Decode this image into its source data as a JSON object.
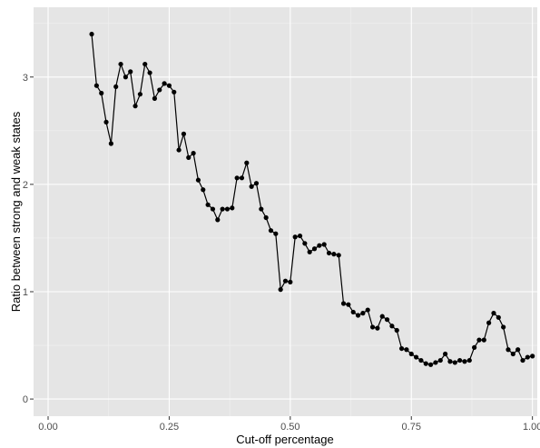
{
  "chart_data": {
    "type": "line",
    "xlabel": "Cut-off percentage",
    "ylabel": "Ratio between strong and weak states",
    "xlim": [
      -0.03,
      1.01
    ],
    "ylim": [
      -0.16,
      3.65
    ],
    "x_ticks": [
      0.0,
      0.25,
      0.5,
      0.75,
      1.0
    ],
    "x_tick_labels": [
      "0.00",
      "0.25",
      "0.50",
      "0.75",
      "1.00"
    ],
    "y_ticks": [
      0,
      1,
      2,
      3
    ],
    "y_tick_labels": [
      "0",
      "1",
      "2",
      "3"
    ],
    "grid": true,
    "markers": "points",
    "colors": {
      "panel": "#e5e5e5",
      "grid_major": "#ffffff",
      "grid_minor": "#f0f0f0",
      "line": "#000000"
    },
    "series": [
      {
        "x": [
          0.09,
          0.1,
          0.11,
          0.12,
          0.13,
          0.14,
          0.15,
          0.16,
          0.17,
          0.18,
          0.19,
          0.2,
          0.21,
          0.22,
          0.23,
          0.24,
          0.25,
          0.26,
          0.27,
          0.28,
          0.29,
          0.3,
          0.31,
          0.32,
          0.33,
          0.34,
          0.35,
          0.36,
          0.37,
          0.38,
          0.39,
          0.4,
          0.41,
          0.42,
          0.43,
          0.44,
          0.45,
          0.46,
          0.47,
          0.48,
          0.49,
          0.5,
          0.51,
          0.52,
          0.53,
          0.54,
          0.55,
          0.56,
          0.57,
          0.58,
          0.59,
          0.6,
          0.61,
          0.62,
          0.63,
          0.64,
          0.65,
          0.66,
          0.67,
          0.68,
          0.69,
          0.7,
          0.71,
          0.72,
          0.73,
          0.74,
          0.75,
          0.76,
          0.77,
          0.78,
          0.79,
          0.8,
          0.81,
          0.82,
          0.83,
          0.84,
          0.85,
          0.86,
          0.87,
          0.88,
          0.89,
          0.9,
          0.91,
          0.92,
          0.93,
          0.94,
          0.95,
          0.96,
          0.97,
          0.98,
          0.99,
          1.0
        ],
        "y": [
          3.4,
          2.92,
          2.85,
          2.58,
          2.38,
          2.91,
          3.12,
          3.0,
          3.05,
          2.73,
          2.84,
          3.12,
          3.04,
          2.8,
          2.88,
          2.94,
          2.92,
          2.86,
          2.32,
          2.47,
          2.25,
          2.29,
          2.04,
          1.95,
          1.81,
          1.77,
          1.67,
          1.77,
          1.77,
          1.78,
          2.06,
          2.06,
          2.2,
          1.98,
          2.01,
          1.77,
          1.69,
          1.57,
          1.54,
          1.02,
          1.1,
          1.09,
          1.51,
          1.52,
          1.45,
          1.37,
          1.4,
          1.43,
          1.44,
          1.36,
          1.35,
          1.34,
          0.89,
          0.88,
          0.81,
          0.78,
          0.8,
          0.83,
          0.67,
          0.66,
          0.77,
          0.74,
          0.68,
          0.64,
          0.47,
          0.46,
          0.42,
          0.39,
          0.36,
          0.33,
          0.32,
          0.34,
          0.36,
          0.42,
          0.35,
          0.34,
          0.36,
          0.35,
          0.36,
          0.48,
          0.55,
          0.55,
          0.71,
          0.8,
          0.76,
          0.67,
          0.46,
          0.42,
          0.46,
          0.36,
          0.39,
          0.4
        ]
      }
    ]
  }
}
